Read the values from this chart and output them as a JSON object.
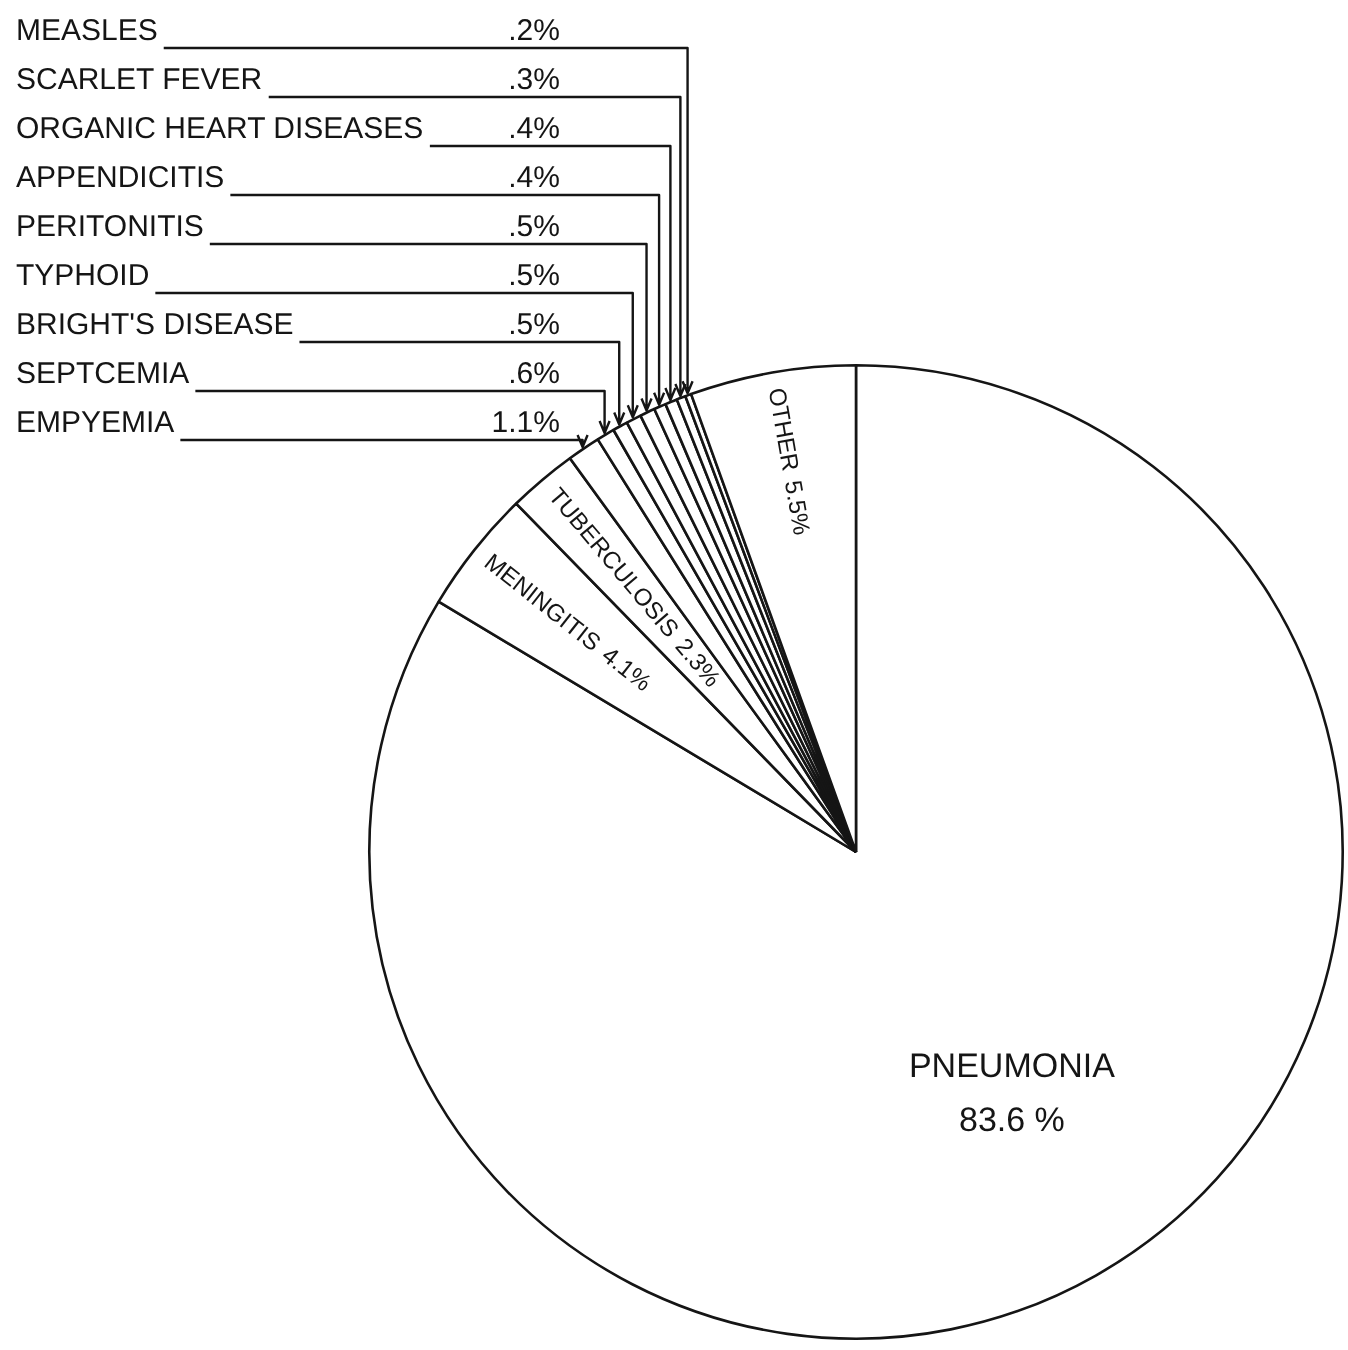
{
  "chart_data": {
    "type": "pie",
    "categories": [
      "PNEUMONIA",
      "MENINGITIS",
      "TUBERCULOSIS",
      "EMPYEMIA",
      "SEPTCEMIA",
      "BRIGHT'S DISEASE",
      "TYPHOID",
      "PERITONITIS",
      "APPENDICITIS",
      "ORGANIC HEART DISEASES",
      "SCARLET FEVER",
      "MEASLES",
      "OTHER"
    ],
    "values": [
      83.6,
      4.1,
      2.3,
      1.1,
      0.6,
      0.5,
      0.5,
      0.5,
      0.4,
      0.4,
      0.3,
      0.2,
      5.5
    ],
    "value_labels": [
      "83.6 %",
      "4.1%",
      "2.3%",
      "1.1%",
      ".6%",
      ".5%",
      ".5%",
      ".5%",
      ".4%",
      ".4%",
      ".3%",
      ".2%",
      "5.5%"
    ],
    "colors": [
      "#ffffff",
      "#ffffff",
      "#ffffff",
      "#ffffff",
      "#ffffff",
      "#ffffff",
      "#ffffff",
      "#ffffff",
      "#ffffff",
      "#ffffff",
      "#ffffff",
      "#ffffff",
      "#ffffff"
    ]
  }
}
